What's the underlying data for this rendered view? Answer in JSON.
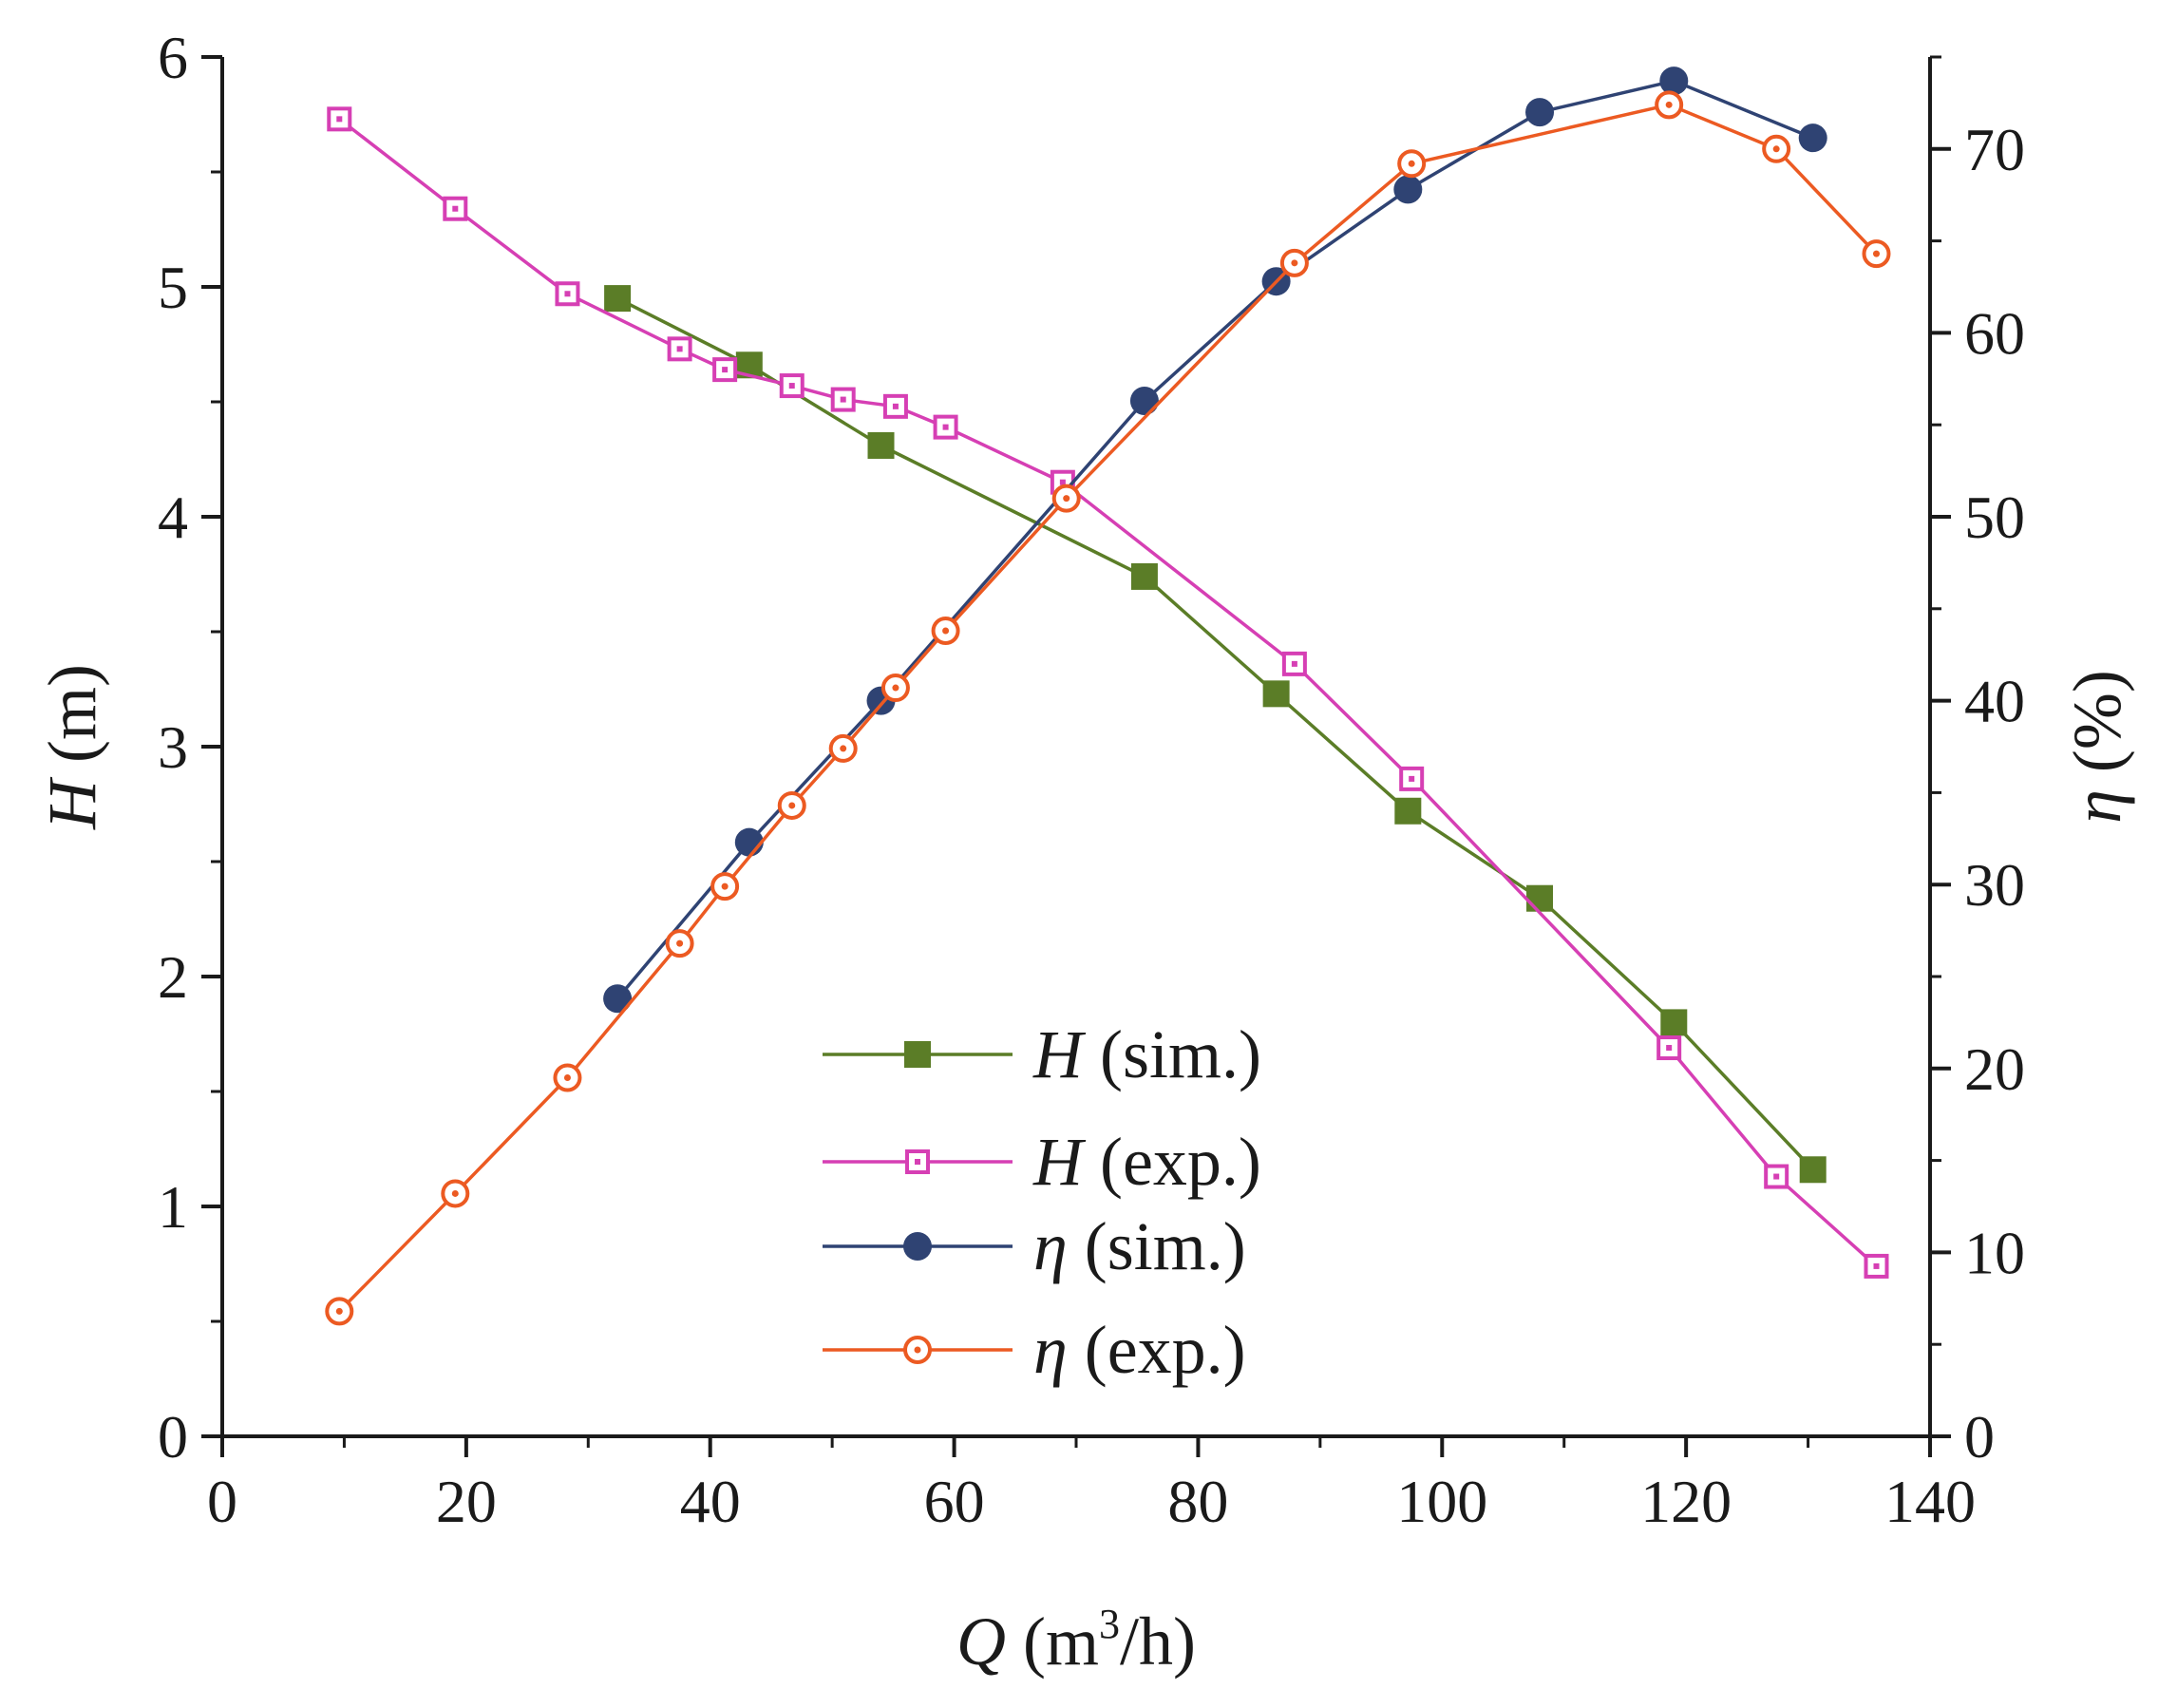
{
  "chart_data": {
    "type": "line",
    "title": "",
    "xlabel": {
      "symbol": "Q",
      "unit_open": " (m",
      "unit_sup": "3",
      "unit_close": "/h)"
    },
    "ylabel_left": {
      "symbol": "H",
      "unit": " (m)"
    },
    "ylabel_right": {
      "symbol": "η",
      "unit": " (%)"
    },
    "xlim": [
      0,
      140
    ],
    "ylim_left": [
      0,
      6
    ],
    "ylim_right": [
      0,
      75
    ],
    "x_ticks": [
      "0",
      "20",
      "40",
      "60",
      "80",
      "100",
      "120",
      "140"
    ],
    "y_left_ticks": [
      "0",
      "1",
      "2",
      "3",
      "4",
      "5",
      "6"
    ],
    "y_right_ticks": [
      "0",
      "10",
      "20",
      "30",
      "40",
      "50",
      "60",
      "70"
    ],
    "legend_position": "lower-center",
    "series": [
      {
        "id": "h-sim",
        "name_symbol": "H",
        "name_rest": " (sim.)",
        "axis": "left",
        "marker": "filled-square",
        "color": "#5b7d27",
        "x": [
          32.4,
          43.2,
          54.0,
          75.6,
          86.4,
          97.2,
          108.0,
          119.0,
          130.4
        ],
        "y": [
          4.95,
          4.66,
          4.31,
          3.74,
          3.23,
          2.72,
          2.34,
          1.8,
          1.16
        ]
      },
      {
        "id": "h-exp",
        "name_symbol": "H",
        "name_rest": " (exp.)",
        "axis": "left",
        "marker": "hollow-square",
        "color": "#d63fb4",
        "x": [
          9.6,
          19.1,
          28.3,
          37.5,
          41.2,
          46.7,
          50.9,
          55.2,
          59.3,
          68.9,
          87.9,
          97.5,
          118.6,
          127.4,
          135.6
        ],
        "y": [
          5.73,
          5.34,
          4.97,
          4.73,
          4.64,
          4.57,
          4.51,
          4.48,
          4.39,
          4.15,
          3.36,
          2.86,
          1.69,
          1.13,
          0.74
        ]
      },
      {
        "id": "eta-sim",
        "name_symbol": "η",
        "name_rest": " (sim.)",
        "axis": "right",
        "marker": "filled-circle",
        "color": "#2f4373",
        "x": [
          32.4,
          43.2,
          54.0,
          75.6,
          86.4,
          97.2,
          108.0,
          119.0,
          130.4
        ],
        "y": [
          23.8,
          32.3,
          40.0,
          56.3,
          62.8,
          67.8,
          72.0,
          73.7,
          70.6
        ]
      },
      {
        "id": "eta-exp",
        "name_symbol": "η",
        "name_rest": " (exp.)",
        "axis": "right",
        "marker": "hollow-circle",
        "color": "#ec5a22",
        "x": [
          9.6,
          19.1,
          28.3,
          37.5,
          41.2,
          46.7,
          50.9,
          55.2,
          59.3,
          69.2,
          87.9,
          97.5,
          118.6,
          127.4,
          135.6
        ],
        "y": [
          6.8,
          13.2,
          19.5,
          26.8,
          29.9,
          34.3,
          37.4,
          40.7,
          43.8,
          51.0,
          63.8,
          69.2,
          72.4,
          70.0,
          64.3
        ]
      }
    ]
  }
}
